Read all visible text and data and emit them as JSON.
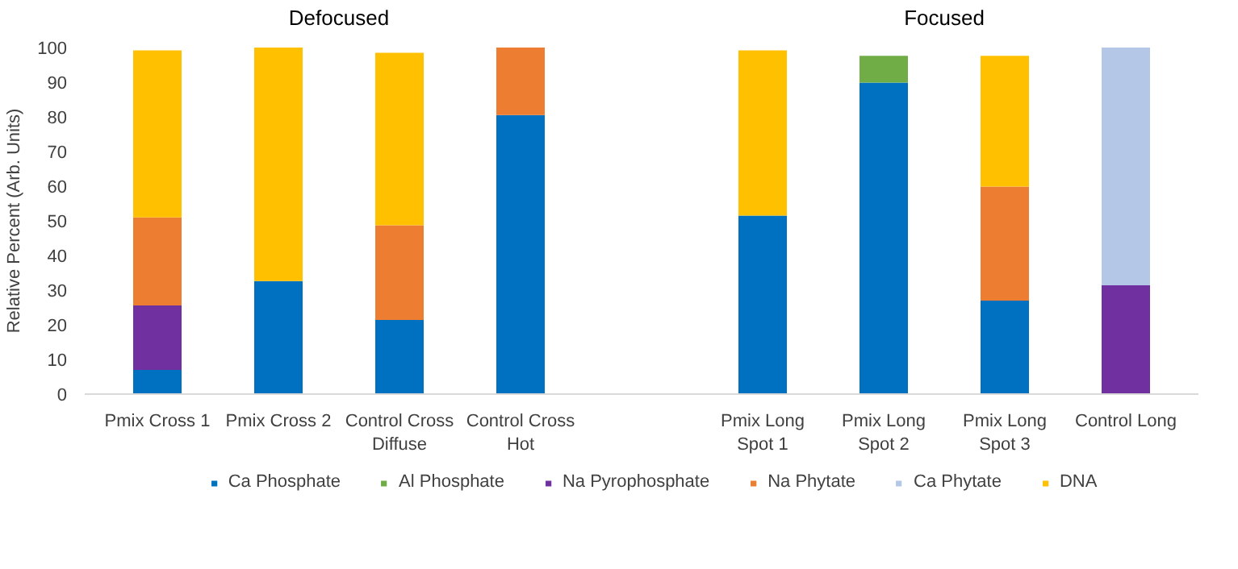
{
  "chart_data": {
    "type": "bar",
    "stacked": true,
    "ylabel": "Relative Percent (Arb. Units)",
    "ylim": [
      0,
      100
    ],
    "yticks": [
      0,
      10,
      20,
      30,
      40,
      50,
      60,
      70,
      80,
      90,
      100
    ],
    "grid": false,
    "legend": "bottom",
    "annotations": [
      "Defocused",
      "Focused"
    ],
    "categories": [
      "Pmix Cross 1",
      "Pmix Cross 2",
      "Control Cross Diffuse",
      "Control Cross Hot",
      null,
      "Pmix Long Spot 1",
      "Pmix Long Spot 2",
      "Pmix Long Spot 3",
      "Control Long"
    ],
    "series": [
      {
        "name": "Ca Phosphate",
        "color": "#0070c0",
        "values": [
          7,
          32.6,
          21.4,
          80.5,
          null,
          51.5,
          89.9,
          27,
          null
        ]
      },
      {
        "name": "Al Phosphate",
        "color": "#70ad47",
        "values": [
          null,
          null,
          null,
          null,
          null,
          null,
          7.7,
          null,
          null
        ]
      },
      {
        "name": "Na Pyrophosphate",
        "color": "#7030a0",
        "values": [
          18.6,
          null,
          null,
          null,
          null,
          null,
          null,
          null,
          31.4
        ]
      },
      {
        "name": "Na Phytate",
        "color": "#ed7d31",
        "values": [
          25.4,
          null,
          27.3,
          19.5,
          null,
          null,
          null,
          32.9,
          null
        ]
      },
      {
        "name": "Ca Phytate",
        "color": "#b4c7e7",
        "values": [
          null,
          null,
          null,
          null,
          null,
          null,
          null,
          null,
          68.6
        ]
      },
      {
        "name": "DNA",
        "color": "#ffc000",
        "values": [
          48.2,
          67.4,
          49.8,
          null,
          null,
          47.7,
          null,
          37.7,
          null
        ]
      }
    ]
  }
}
